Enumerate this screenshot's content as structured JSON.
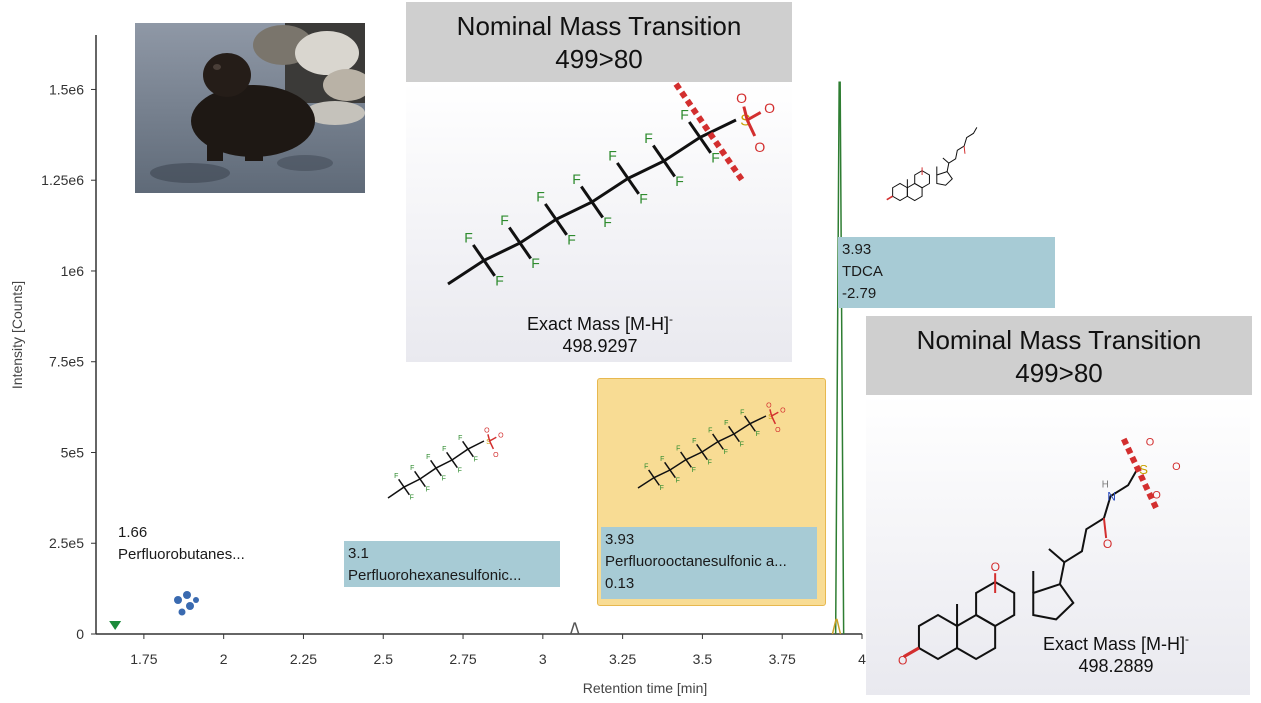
{
  "chart_data": {
    "type": "line",
    "xlabel": "Retention time [min]",
    "ylabel": "Intensity [Counts]",
    "xlim": [
      1.6,
      4.0
    ],
    "ylim": [
      0,
      1650000
    ],
    "x_ticks": [
      "1.75",
      "2",
      "2.25",
      "2.5",
      "2.75",
      "3",
      "3.25",
      "3.5",
      "3.75",
      "4"
    ],
    "y_ticks": [
      "0",
      "2.5e5",
      "5e5",
      "7.5e5",
      "1e6",
      "1.25e6",
      "1.5e6"
    ],
    "x_tick_values": [
      1.75,
      2.0,
      2.25,
      2.5,
      2.75,
      3.0,
      3.25,
      3.5,
      3.75,
      4.0
    ],
    "y_tick_values": [
      0,
      250000,
      500000,
      750000,
      1000000,
      1250000,
      1500000
    ],
    "peaks": [
      {
        "rt": 3.93,
        "intensity": 1520000,
        "color": "#2e7d32"
      },
      {
        "rt": 3.92,
        "intensity": 40000,
        "color": "#c9a227"
      },
      {
        "rt": 3.1,
        "intensity": 30000,
        "color": "#555555"
      }
    ],
    "marker": {
      "rt": 1.66,
      "color": "#1a8a3a"
    }
  },
  "annotations": {
    "pfbs": {
      "rt": "1.66",
      "name": "Perfluorobutanes..."
    },
    "pfhxs": {
      "rt": "3.1",
      "name": "Perfluorohexanesulfonic..."
    },
    "pfos": {
      "rt": "3.93",
      "name": "Perfluorooctanesulfonic a...",
      "score": "0.13"
    },
    "tdca": {
      "rt": "3.93",
      "name": "TDCA",
      "score": "-2.79"
    }
  },
  "box_left": {
    "title_line1": "Nominal Mass Transition",
    "title_line2": "499>80",
    "mass_label": "Exact Mass [M-H]",
    "mass_sup": "-",
    "mass_value": "498.9297",
    "atom_f": "F",
    "atom_s": "S",
    "atom_o": "O"
  },
  "box_right": {
    "title_line1": "Nominal Mass Transition",
    "title_line2": "499>80",
    "mass_label": "Exact Mass [M-H]",
    "mass_sup": "-",
    "mass_value": "498.2889",
    "atom_o": "O",
    "atom_n": "N",
    "atom_h": "H",
    "atom_s": "S"
  },
  "colors": {
    "teal_label": "#a7cbd5",
    "highlight": "#f8dc94",
    "cleavage": "#d32f2f",
    "fluorine": "#2e8b2e",
    "oxygen": "#d32f2f",
    "sulfur": "#c8a200",
    "nitrogen": "#3050c0"
  }
}
